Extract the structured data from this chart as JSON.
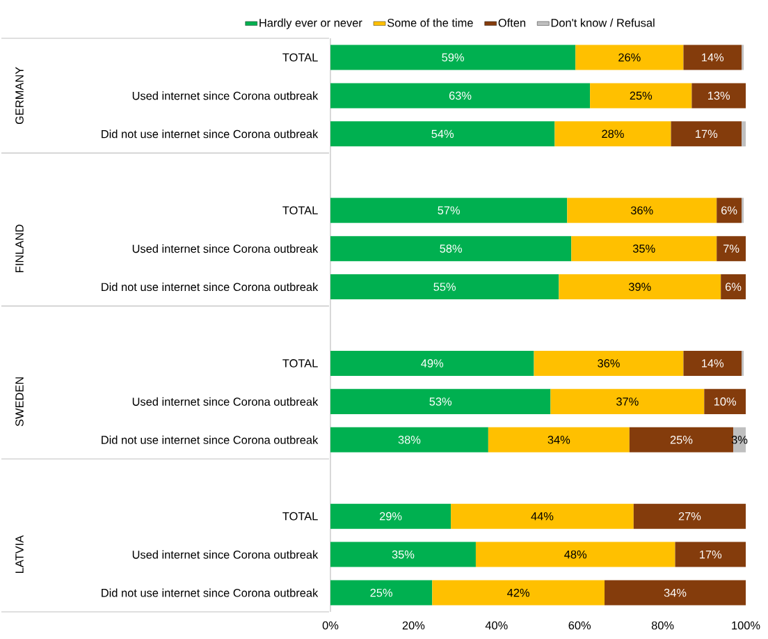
{
  "chart_data": {
    "type": "bar",
    "orientation": "horizontal",
    "stacked": true,
    "legend": "top",
    "categories": [
      "TOTAL",
      "Used internet since Corona outbreak",
      "Did not use internet since Corona outbreak",
      null,
      "TOTAL",
      "Used internet since Corona outbreak",
      "Did not use internet since Corona outbreak",
      null,
      "TOTAL",
      "Used internet since Corona outbreak",
      "Did not use internet since Corona outbreak",
      null,
      "TOTAL",
      "Used internet since Corona outbreak",
      "Did not use internet since Corona outbreak"
    ],
    "annotations": [
      "GERMANY",
      "FINLAND",
      "SWEDEN",
      "LATVIA"
    ],
    "xlim": [
      0,
      100
    ],
    "xticks": [
      {
        "value": 0,
        "label": "0%"
      },
      {
        "value": 20,
        "label": "20%"
      },
      {
        "value": 40,
        "label": "40%"
      },
      {
        "value": 60,
        "label": "60%"
      },
      {
        "value": 80,
        "label": "80%"
      },
      {
        "value": 100,
        "label": "100%"
      }
    ],
    "series": [
      {
        "name": "Hardly ever or never",
        "color": "#00b050",
        "values": [
          59,
          62.5,
          54,
          null,
          57,
          58,
          55,
          null,
          49,
          53,
          38,
          null,
          29,
          35,
          24.5
        ],
        "value_labels": [
          "59%",
          "63%",
          "54%",
          null,
          "57%",
          "58%",
          "55%",
          null,
          "49%",
          "53%",
          "38%",
          null,
          "29%",
          "35%",
          "25%"
        ]
      },
      {
        "name": "Some of the time",
        "color": "#ffc000",
        "values": [
          26,
          24.5,
          28,
          null,
          36,
          35,
          39,
          null,
          36,
          37,
          34,
          null,
          44,
          48,
          41.5
        ],
        "value_labels": [
          "26%",
          "25%",
          "28%",
          null,
          "36%",
          "35%",
          "39%",
          null,
          "36%",
          "37%",
          "34%",
          null,
          "44%",
          "48%",
          "42%"
        ]
      },
      {
        "name": "Often",
        "color": "#843c0c",
        "values": [
          14,
          13,
          17,
          null,
          6,
          7,
          6,
          null,
          14,
          10,
          25,
          null,
          27,
          17,
          34
        ],
        "value_labels": [
          "14%",
          "13%",
          "17%",
          null,
          "6%",
          "7%",
          "6%",
          null,
          "14%",
          "10%",
          "25%",
          null,
          "27%",
          "17%",
          "34%"
        ]
      },
      {
        "name": "Don't know / Refusal",
        "color": "#bfbfbf",
        "values": [
          0.5,
          null,
          1,
          null,
          0.5,
          null,
          null,
          null,
          0.5,
          null,
          3,
          null,
          null,
          null,
          null
        ],
        "value_labels": [
          null,
          null,
          null,
          null,
          null,
          null,
          null,
          null,
          null,
          null,
          "3%",
          null,
          null,
          null,
          null
        ]
      }
    ]
  }
}
